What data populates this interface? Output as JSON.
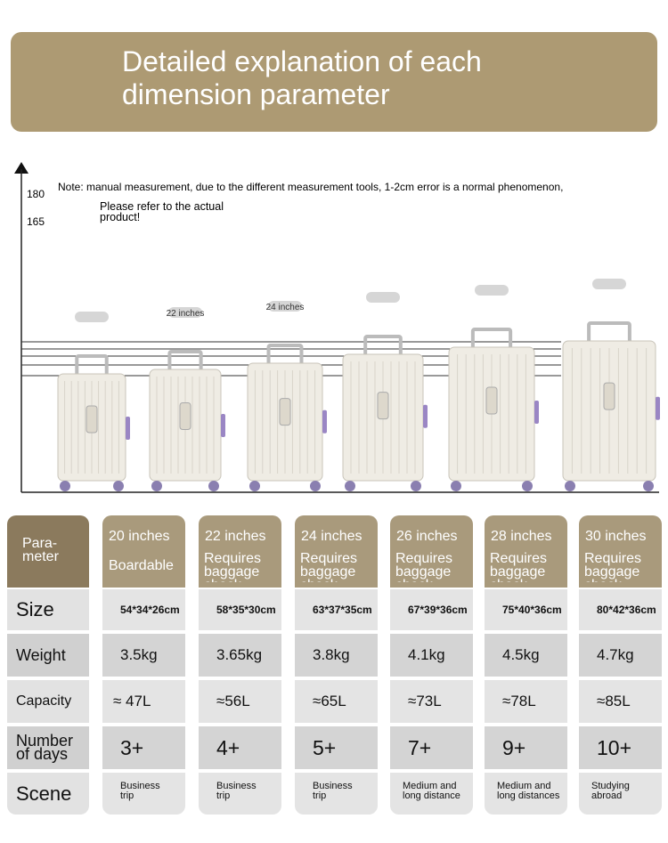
{
  "header": {
    "title": "Detailed explanation of each dimension parameter"
  },
  "figure": {
    "axis_labels": [
      "180",
      "165"
    ],
    "note": "Note: manual measurement, due to the different measurement tools, 1-2cm error is a normal phenomenon,",
    "note_continued": "Please refer to the actual product!",
    "suitcase_labels": [
      null,
      "22 inches",
      "24 inches",
      null,
      null,
      null
    ]
  },
  "table": {
    "corner": "Para-\nmeter",
    "columns": [
      {
        "size": "20 inches",
        "type": "Boardable"
      },
      {
        "size": "22 inches",
        "type": "Requires baggage check"
      },
      {
        "size": "24 inches",
        "type": "Requires baggage check"
      },
      {
        "size": "26 inches",
        "type": "Requires baggage check"
      },
      {
        "size": "28 inches",
        "type": "Requires baggage check"
      },
      {
        "size": "30 inches",
        "type": "Requires baggage check"
      }
    ],
    "rows": [
      {
        "label": "Size",
        "cells": [
          "54*34*26cm",
          "58*35*30cm",
          "63*37*35cm",
          "67*39*36cm",
          "75*40*36cm",
          "80*42*36cm"
        ]
      },
      {
        "label": "Weight",
        "cells": [
          "3.5kg",
          "3.65kg",
          "3.8kg",
          "4.1kg",
          "4.5kg",
          "4.7kg"
        ]
      },
      {
        "label": "Capacity",
        "cells": [
          "≈ 47L",
          "≈56L",
          "≈65L",
          "≈73L",
          "≈78L",
          "≈85L"
        ]
      },
      {
        "label": "Number\nof days",
        "cells": [
          "3+",
          "4+",
          "5+",
          "7+",
          "9+",
          "10+"
        ]
      },
      {
        "label": "Scene",
        "cells": [
          "Business\ntrip",
          "Business\ntrip",
          "Business\ntrip",
          "Medium and\nlong distance",
          "Medium and\nlong distances",
          "Studying abroad"
        ]
      }
    ]
  }
}
